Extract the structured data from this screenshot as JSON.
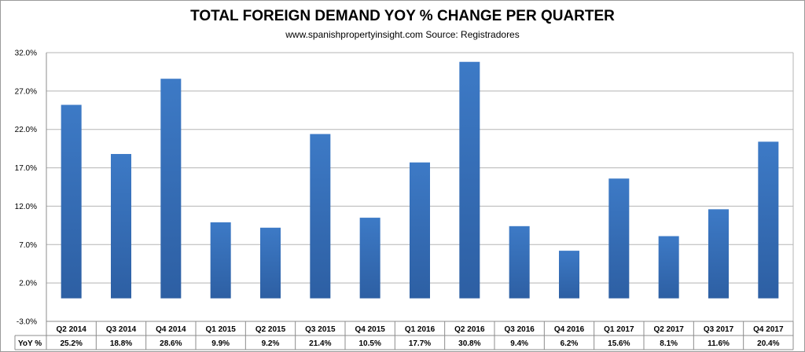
{
  "chart_data": {
    "type": "bar",
    "title": "TOTAL FOREIGN DEMAND YOY % CHANGE PER QUARTER",
    "subtitle": "www.spanishpropertyinsight.com Source: Registradores",
    "categories": [
      "Q2 2014",
      "Q3 2014",
      "Q4 2014",
      "Q1 2015",
      "Q2 2015",
      "Q3 2015",
      "Q4 2015",
      "Q1 2016",
      "Q2 2016",
      "Q3 2016",
      "Q4 2016",
      "Q1 2017",
      "Q2 2017",
      "Q3 2017",
      "Q4 2017"
    ],
    "series": [
      {
        "name": "YoY %",
        "values": [
          25.2,
          18.8,
          28.6,
          9.9,
          9.2,
          21.4,
          10.5,
          17.7,
          30.8,
          9.4,
          6.2,
          15.6,
          8.1,
          11.6,
          20.4
        ],
        "labels": [
          "25.2%",
          "18.8%",
          "28.6%",
          "9.9%",
          "9.2%",
          "21.4%",
          "10.5%",
          "17.7%",
          "30.8%",
          "9.4%",
          "6.2%",
          "15.6%",
          "8.1%",
          "11.6%",
          "20.4%"
        ]
      }
    ],
    "yticks": [
      "32.0%",
      "27.0%",
      "22.0%",
      "17.0%",
      "12.0%",
      "7.0%",
      "2.0%",
      "-3.0%"
    ],
    "ytick_values": [
      32,
      27,
      22,
      17,
      12,
      7,
      2,
      -3
    ],
    "ylim": [
      -3,
      32
    ],
    "grid": true,
    "data_table": true,
    "bar_color": "#3d7ac6",
    "bar_color_dark": "#2d5fa3"
  }
}
